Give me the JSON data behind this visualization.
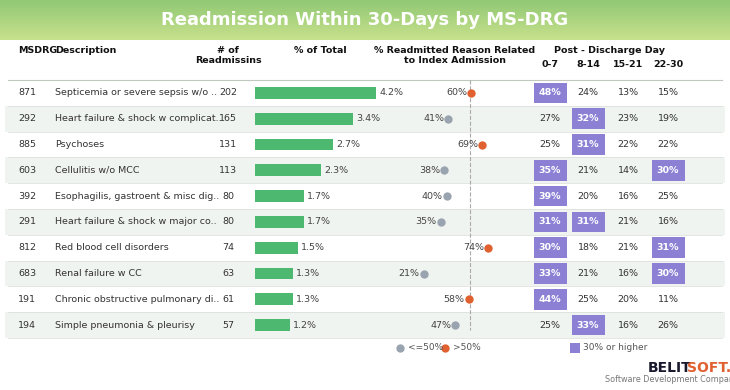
{
  "title_text": "Readmission Within 30-Days by MS-DRG",
  "title_bg_top": "#8cc870",
  "title_bg_bot": "#5aad6a",
  "purple": "#8b80d4",
  "green_bar": "#4db870",
  "dot_orange": "#e06030",
  "dot_gray": "#9aa4b0",
  "rows": [
    {
      "msdrg": "871",
      "desc": "Septicemia or severe sepsis w/o ..",
      "readmissions": 202,
      "pct_total": 4.2,
      "related_pct": 60,
      "dot_color": "orange",
      "d07": 48,
      "d814": 24,
      "d1521": 13,
      "d2230": 15
    },
    {
      "msdrg": "292",
      "desc": "Heart failure & shock w complicat..",
      "readmissions": 165,
      "pct_total": 3.4,
      "related_pct": 41,
      "dot_color": "gray",
      "d07": 27,
      "d814": 32,
      "d1521": 23,
      "d2230": 19
    },
    {
      "msdrg": "885",
      "desc": "Psychoses",
      "readmissions": 131,
      "pct_total": 2.7,
      "related_pct": 69,
      "dot_color": "orange",
      "d07": 25,
      "d814": 31,
      "d1521": 22,
      "d2230": 22
    },
    {
      "msdrg": "603",
      "desc": "Cellulitis w/o MCC",
      "readmissions": 113,
      "pct_total": 2.3,
      "related_pct": 38,
      "dot_color": "gray",
      "d07": 35,
      "d814": 21,
      "d1521": 14,
      "d2230": 30
    },
    {
      "msdrg": "392",
      "desc": "Esophagilis, gastroent & misc dig..",
      "readmissions": 80,
      "pct_total": 1.7,
      "related_pct": 40,
      "dot_color": "gray",
      "d07": 39,
      "d814": 20,
      "d1521": 16,
      "d2230": 25
    },
    {
      "msdrg": "291",
      "desc": "Heart failure & shock w major co..",
      "readmissions": 80,
      "pct_total": 1.7,
      "related_pct": 35,
      "dot_color": "gray",
      "d07": 31,
      "d814": 31,
      "d1521": 21,
      "d2230": 16
    },
    {
      "msdrg": "812",
      "desc": "Red blood cell disorders",
      "readmissions": 74,
      "pct_total": 1.5,
      "related_pct": 74,
      "dot_color": "orange",
      "d07": 30,
      "d814": 18,
      "d1521": 21,
      "d2230": 31
    },
    {
      "msdrg": "683",
      "desc": "Renal failure w CC",
      "readmissions": 63,
      "pct_total": 1.3,
      "related_pct": 21,
      "dot_color": "gray",
      "d07": 33,
      "d814": 21,
      "d1521": 16,
      "d2230": 30
    },
    {
      "msdrg": "191",
      "desc": "Chronic obstructive pulmonary di..",
      "readmissions": 61,
      "pct_total": 1.3,
      "related_pct": 58,
      "dot_color": "orange",
      "d07": 44,
      "d814": 25,
      "d1521": 20,
      "d2230": 11
    },
    {
      "msdrg": "194",
      "desc": "Simple pneumonia & pleurisy",
      "readmissions": 57,
      "pct_total": 1.2,
      "related_pct": 47,
      "dot_color": "gray",
      "d07": 25,
      "d814": 33,
      "d1521": 16,
      "d2230": 26
    }
  ]
}
